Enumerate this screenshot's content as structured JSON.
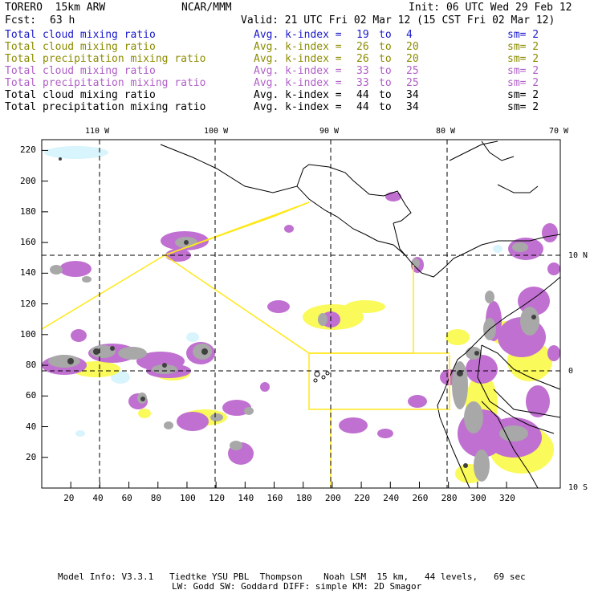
{
  "header": {
    "model": "TORERO  15km ARW",
    "org": "NCAR/MMM",
    "init": "Init: 06 UTC Wed 29 Feb 12",
    "fcst_label": "Fcst:",
    "fcst_value": "63 h",
    "valid": "Valid: 21 UTC Fri 02 Mar 12 (15 CST Fri 02 Mar 12)"
  },
  "legend": [
    {
      "field": "Total cloud mixing ratio",
      "avg": "Avg. k-index =",
      "k1": "19",
      "to": "to",
      "k2": "4",
      "sm": "sm= 2",
      "color": "#1a1acc"
    },
    {
      "field": "Total cloud mixing ratio",
      "avg": "Avg. k-index =",
      "k1": "26",
      "to": "to",
      "k2": "20",
      "sm": "sm= 2",
      "color": "#8c8c00"
    },
    {
      "field": "Total precipitation mixing ratio",
      "avg": "Avg. k-index =",
      "k1": "26",
      "to": "to",
      "k2": "20",
      "sm": "sm= 2",
      "color": "#8c8c00"
    },
    {
      "field": "Total cloud mixing ratio",
      "avg": "Avg. k-index =",
      "k1": "33",
      "to": "to",
      "k2": "25",
      "sm": "sm= 2",
      "color": "#b060c8"
    },
    {
      "field": "Total precipitation mixing ratio",
      "avg": "Avg. k-index =",
      "k1": "33",
      "to": "to",
      "k2": "25",
      "sm": "sm= 2",
      "color": "#b060c8"
    },
    {
      "field": "Total cloud mixing ratio",
      "avg": "Avg. k-index =",
      "k1": "44",
      "to": "to",
      "k2": "34",
      "sm": "sm= 2",
      "color": "#000000"
    },
    {
      "field": "Total precipitation mixing ratio",
      "avg": "Avg. k-index =",
      "k1": "44",
      "to": "to",
      "k2": "34",
      "sm": "sm= 2",
      "color": "#000000"
    }
  ],
  "axes": {
    "x_ticks": [
      "20",
      "40",
      "60",
      "80",
      "100",
      "120",
      "140",
      "160",
      "180",
      "200",
      "220",
      "240",
      "260",
      "280",
      "300",
      "320"
    ],
    "y_ticks": [
      "20",
      "40",
      "60",
      "80",
      "100",
      "120",
      "140",
      "160",
      "180",
      "200",
      "220"
    ],
    "lon_labels": [
      "110 W",
      "100 W",
      "90 W",
      "80 W",
      "70 W"
    ],
    "lat_labels": [
      "10 N",
      "0",
      "10 S"
    ]
  },
  "colors": {
    "light_cyan": "#d8f4fc",
    "yellow": "#fafa5a",
    "magenta": "#c070d0",
    "gray": "#a8a8a8",
    "dark": "#404040",
    "domain_line": "#ffe81a"
  },
  "footer": {
    "line1": "Model Info: V3.3.1   Tiedtke YSU PBL  Thompson    Noah LSM  15 km,   44 levels,   69 sec",
    "line2": "LW: Godd SW: Goddard DIFF: simple KM: 2D Smagor"
  }
}
